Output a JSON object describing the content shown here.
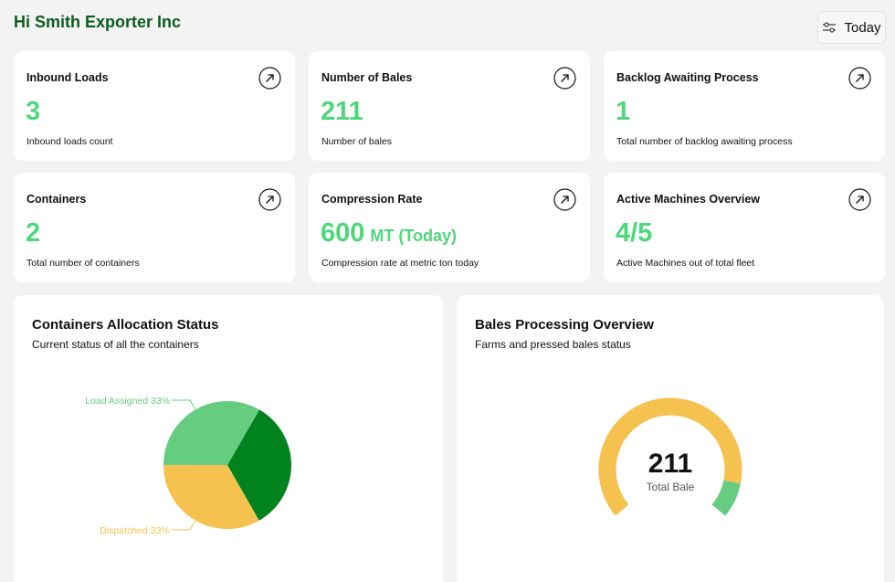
{
  "header": {
    "title": "Hi Smith Exporter Inc"
  },
  "filter": {
    "label": "Today",
    "icon": "sliders-icon"
  },
  "cards": [
    {
      "title": "Inbound Loads",
      "value": "3",
      "unit": "",
      "description": "Inbound loads count"
    },
    {
      "title": "Number of Bales",
      "value": "211",
      "unit": "",
      "description": "Number of bales"
    },
    {
      "title": "Backlog Awaiting Process",
      "value": "1",
      "unit": "",
      "description": "Total number of backlog awaiting process"
    },
    {
      "title": "Containers",
      "value": "2",
      "unit": "",
      "description": "Total number of containers"
    },
    {
      "title": "Compression Rate",
      "value": "600",
      "unit": "MT (Today)",
      "description": "Compression rate at metric ton today"
    },
    {
      "title": "Active Machines Overview",
      "value": "4/5",
      "unit": "",
      "description": "Active Machines out of total fleet"
    }
  ],
  "colors": {
    "accent": "#4cd87a",
    "title": "#0b5d1e",
    "dark_green": "#00821e",
    "light_green": "#66cc80",
    "yellow": "#f5c14f"
  },
  "containers_panel": {
    "title": "Containers Allocation Status",
    "subtitle": "Current status of all the containers"
  },
  "bales_panel": {
    "title": "Bales Processing Overview",
    "subtitle": "Farms and pressed bales status",
    "center_value": "211",
    "center_label": "Total Bale"
  },
  "chart_data": [
    {
      "type": "pie",
      "categories": [
        "",
        "Dispatched",
        "Load Assigned"
      ],
      "values": [
        33.4,
        33.3,
        33.3
      ],
      "colors": [
        "#00821e",
        "#f5c14f",
        "#66cc80"
      ],
      "data_labels": [
        "",
        "Dispatched 33%",
        "Load Assigned 33%"
      ]
    },
    {
      "type": "pie",
      "categories": [
        "",
        ""
      ],
      "values": [
        0.89,
        0.11
      ],
      "colors": [
        "#f5c14f",
        "#66cc80"
      ],
      "center_value": "211",
      "center_label": "Total Bale"
    }
  ]
}
